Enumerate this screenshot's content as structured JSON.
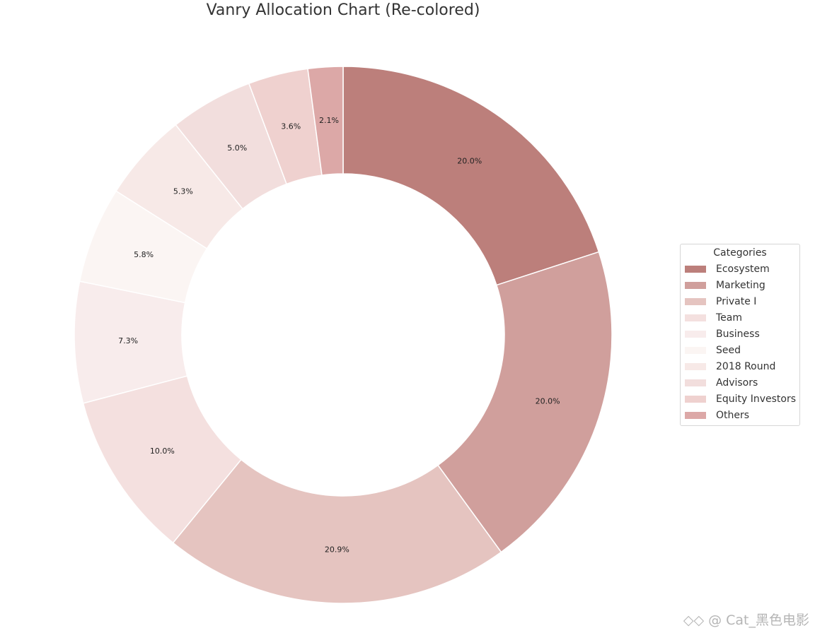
{
  "chart_data": {
    "type": "pie",
    "title": "Vanry Allocation Chart (Re-colored)",
    "legend_title": "Categories",
    "legend_position": "right",
    "categories": [
      "Ecosystem",
      "Marketing",
      "Private I",
      "Team",
      "Business",
      "Seed",
      "2018 Round",
      "Advisors",
      "Equity Investors",
      "Others"
    ],
    "values": [
      20.0,
      20.0,
      20.9,
      10.0,
      7.3,
      5.8,
      5.3,
      5.0,
      3.6,
      2.1
    ],
    "labels": [
      "20.0%",
      "20.0%",
      "20.9%",
      "10.0%",
      "7.3%",
      "5.8%",
      "5.3%",
      "5.0%",
      "3.6%",
      "2.1%"
    ],
    "colors": [
      "#bc7f7b",
      "#d09f9c",
      "#e5c4c0",
      "#f4e0df",
      "#f8ecec",
      "#fbf5f3",
      "#f7e9e7",
      "#f2dedd",
      "#efd1cf",
      "#dca8a7"
    ]
  },
  "watermark": "◇◇ @ Cat_黑色电影"
}
